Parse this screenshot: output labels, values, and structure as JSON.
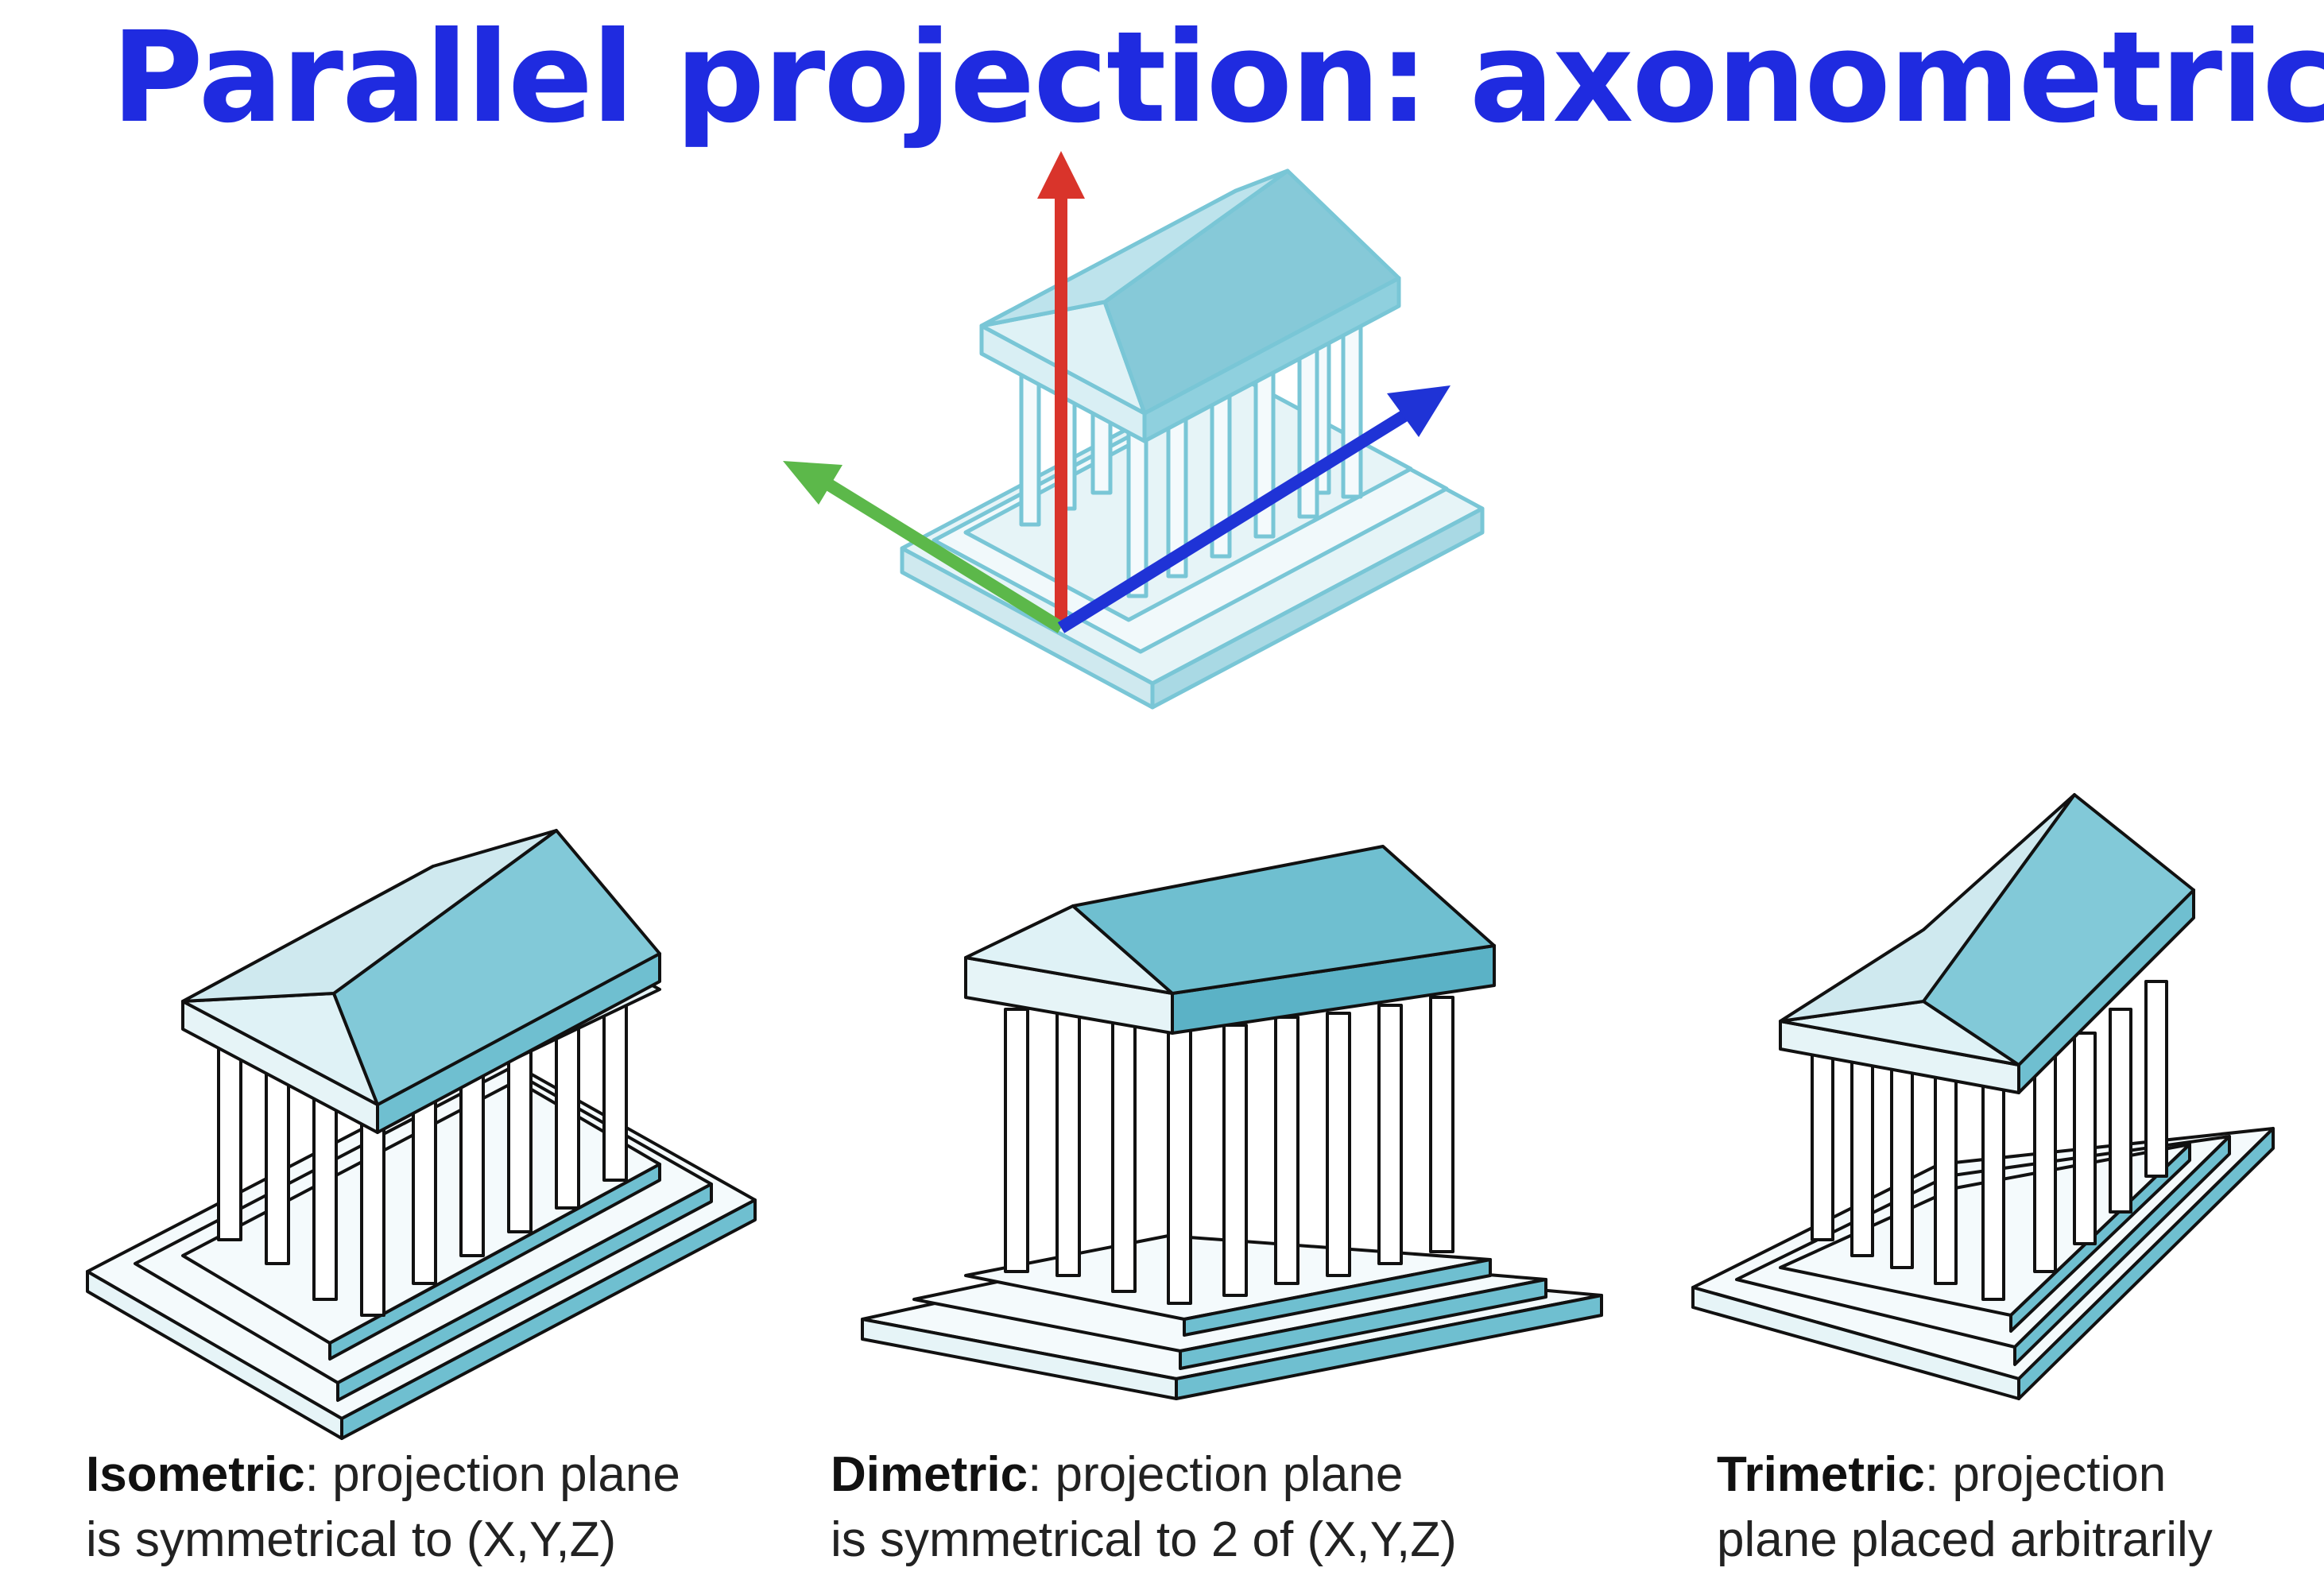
{
  "title": "Parallel projection: axonometric",
  "figures": {
    "top": {
      "name": "axonometric temple with axes",
      "axes": [
        "red-vertical-axis",
        "green-left-axis",
        "blue-right-axis"
      ]
    },
    "isometric": {
      "label": "Isometric",
      "line1_rest": ": projection plane",
      "line2": "is symmetrical to (X,Y,Z)"
    },
    "dimetric": {
      "label": "Dimetric",
      "line1_rest": ": projection plane",
      "line2": "is symmetrical to 2 of (X,Y,Z)"
    },
    "trimetric": {
      "label": "Trimetric",
      "line1_rest": ": projection",
      "line2": "plane placed arbitrarily"
    }
  },
  "colors": {
    "title": "#1f2be0",
    "roof_dark": "#7fc7d6",
    "roof_light": "#d9eff4",
    "axis_red": "#d9342b",
    "axis_green": "#5cb84a",
    "axis_blue": "#1f33d6"
  }
}
